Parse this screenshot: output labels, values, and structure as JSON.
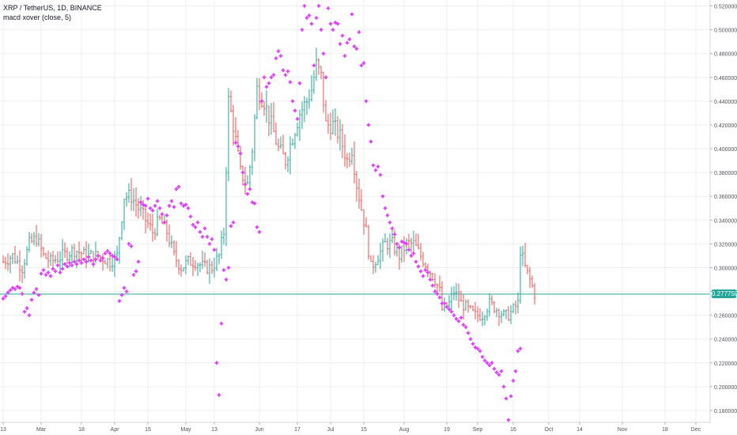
{
  "header": {
    "symbol_line": "XRP / TetherUS, 1D, BINANCE",
    "indicator_line": "macd xover (close, 5)"
  },
  "colors": {
    "up": "#26a69a",
    "down": "#ef5350",
    "marker": "#e040fb",
    "price_line": "#26a69a",
    "axis_text": "#50535e",
    "grid": "#eceff1"
  },
  "chart_data": {
    "type": "ohlc",
    "title": "XRP / TetherUS, 1D, BINANCE",
    "ylim": [
      0.17,
      0.525
    ],
    "y_ticks": [
      "0.18000000",
      "0.20000000",
      "0.22000000",
      "0.24000000",
      "0.26000000",
      "0.28000000",
      "0.30000000",
      "0.32000000",
      "0.34000000",
      "0.36000000",
      "0.38000000",
      "0.40000000",
      "0.42000000",
      "0.44000000",
      "0.46000000",
      "0.48000000",
      "0.50000000",
      "0.52000000"
    ],
    "x_ticks": [
      {
        "label": "13",
        "day": 0
      },
      {
        "label": "Mar",
        "day": 16
      },
      {
        "label": "18",
        "day": 33
      },
      {
        "label": "Apr",
        "day": 47
      },
      {
        "label": "15",
        "day": 61
      },
      {
        "label": "May",
        "day": 77
      },
      {
        "label": "13",
        "day": 89
      },
      {
        "label": "Jun",
        "day": 108
      },
      {
        "label": "17",
        "day": 124
      },
      {
        "label": "Jul",
        "day": 138
      },
      {
        "label": "15",
        "day": 152
      },
      {
        "label": "Aug",
        "day": 169
      },
      {
        "label": "19",
        "day": 187
      },
      {
        "label": "Sep",
        "day": 200
      },
      {
        "label": "16",
        "day": 215
      },
      {
        "label": "Oct",
        "day": 230
      },
      {
        "label": "14",
        "day": 243
      },
      {
        "label": "Nov",
        "day": 261
      },
      {
        "label": "18",
        "day": 279
      },
      {
        "label": "Dec",
        "day": 292
      }
    ],
    "last_price": 0.27775,
    "last_price_label": "0.27775000",
    "legend": "macd xover (close, 5)",
    "ohlc_waypoints": [
      [
        0,
        0.305
      ],
      [
        4,
        0.31
      ],
      [
        8,
        0.3
      ],
      [
        11,
        0.32
      ],
      [
        14,
        0.325
      ],
      [
        17,
        0.31
      ],
      [
        20,
        0.305
      ],
      [
        25,
        0.31
      ],
      [
        30,
        0.315
      ],
      [
        35,
        0.31
      ],
      [
        40,
        0.31
      ],
      [
        45,
        0.305
      ],
      [
        48,
        0.31
      ],
      [
        51,
        0.36
      ],
      [
        54,
        0.36
      ],
      [
        57,
        0.35
      ],
      [
        60,
        0.34
      ],
      [
        63,
        0.33
      ],
      [
        66,
        0.34
      ],
      [
        69,
        0.33
      ],
      [
        72,
        0.31
      ],
      [
        75,
        0.3
      ],
      [
        78,
        0.305
      ],
      [
        81,
        0.305
      ],
      [
        85,
        0.3
      ],
      [
        88,
        0.3
      ],
      [
        91,
        0.31
      ],
      [
        93,
        0.33
      ],
      [
        95,
        0.44
      ],
      [
        97,
        0.42
      ],
      [
        100,
        0.38
      ],
      [
        103,
        0.37
      ],
      [
        105,
        0.4
      ],
      [
        107,
        0.45
      ],
      [
        110,
        0.44
      ],
      [
        113,
        0.42
      ],
      [
        116,
        0.4
      ],
      [
        119,
        0.39
      ],
      [
        122,
        0.41
      ],
      [
        125,
        0.43
      ],
      [
        128,
        0.44
      ],
      [
        130,
        0.45
      ],
      [
        132,
        0.47
      ],
      [
        134,
        0.46
      ],
      [
        136,
        0.42
      ],
      [
        139,
        0.42
      ],
      [
        142,
        0.41
      ],
      [
        145,
        0.39
      ],
      [
        147,
        0.4
      ],
      [
        149,
        0.37
      ],
      [
        151,
        0.35
      ],
      [
        153,
        0.33
      ],
      [
        155,
        0.3
      ],
      [
        158,
        0.31
      ],
      [
        161,
        0.32
      ],
      [
        164,
        0.32
      ],
      [
        167,
        0.31
      ],
      [
        170,
        0.32
      ],
      [
        173,
        0.32
      ],
      [
        176,
        0.31
      ],
      [
        179,
        0.3
      ],
      [
        182,
        0.29
      ],
      [
        184,
        0.28
      ],
      [
        185,
        0.265
      ],
      [
        188,
        0.27
      ],
      [
        190,
        0.28
      ],
      [
        193,
        0.27
      ],
      [
        196,
        0.265
      ],
      [
        199,
        0.26
      ],
      [
        202,
        0.26
      ],
      [
        205,
        0.27
      ],
      [
        208,
        0.265
      ],
      [
        211,
        0.26
      ],
      [
        213,
        0.26
      ],
      [
        215,
        0.265
      ],
      [
        217,
        0.27
      ],
      [
        218,
        0.315
      ],
      [
        220,
        0.3
      ],
      [
        222,
        0.29
      ],
      [
        224,
        0.278
      ]
    ],
    "marker_points": [
      [
        0,
        0.274
      ],
      [
        1,
        0.276
      ],
      [
        2,
        0.279
      ],
      [
        3,
        0.281
      ],
      [
        4,
        0.283
      ],
      [
        5,
        0.282
      ],
      [
        6,
        0.284
      ],
      [
        7,
        0.283
      ],
      [
        8,
        0.278
      ],
      [
        9,
        0.263
      ],
      [
        10,
        0.266
      ],
      [
        11,
        0.26
      ],
      [
        12,
        0.273
      ],
      [
        13,
        0.279
      ],
      [
        14,
        0.282
      ],
      [
        15,
        0.277
      ],
      [
        16,
        0.295
      ],
      [
        17,
        0.298
      ],
      [
        18,
        0.294
      ],
      [
        19,
        0.296
      ],
      [
        20,
        0.293
      ],
      [
        21,
        0.299
      ],
      [
        22,
        0.297
      ],
      [
        23,
        0.302
      ],
      [
        24,
        0.296
      ],
      [
        25,
        0.299
      ],
      [
        26,
        0.303
      ],
      [
        27,
        0.301
      ],
      [
        28,
        0.304
      ],
      [
        29,
        0.302
      ],
      [
        30,
        0.305
      ],
      [
        31,
        0.303
      ],
      [
        32,
        0.306
      ],
      [
        33,
        0.304
      ],
      [
        34,
        0.307
      ],
      [
        35,
        0.305
      ],
      [
        36,
        0.309
      ],
      [
        37,
        0.306
      ],
      [
        38,
        0.303
      ],
      [
        39,
        0.307
      ],
      [
        40,
        0.31
      ],
      [
        41,
        0.306
      ],
      [
        42,
        0.308
      ],
      [
        43,
        0.312
      ],
      [
        44,
        0.314
      ],
      [
        45,
        0.312
      ],
      [
        46,
        0.31
      ],
      [
        47,
        0.309
      ],
      [
        48,
        0.307
      ],
      [
        49,
        0.272
      ],
      [
        50,
        0.277
      ],
      [
        51,
        0.283
      ],
      [
        52,
        0.28
      ],
      [
        53,
        0.32
      ],
      [
        54,
        0.318
      ],
      [
        55,
        0.294
      ],
      [
        56,
        0.297
      ],
      [
        57,
        0.305
      ],
      [
        58,
        0.355
      ],
      [
        59,
        0.353
      ],
      [
        60,
        0.352
      ],
      [
        61,
        0.358
      ],
      [
        62,
        0.35
      ],
      [
        63,
        0.348
      ],
      [
        64,
        0.352
      ],
      [
        65,
        0.356
      ],
      [
        66,
        0.35
      ],
      [
        67,
        0.345
      ],
      [
        68,
        0.338
      ],
      [
        69,
        0.344
      ],
      [
        70,
        0.352
      ],
      [
        71,
        0.356
      ],
      [
        72,
        0.351
      ],
      [
        73,
        0.366
      ],
      [
        74,
        0.368
      ],
      [
        75,
        0.354
      ],
      [
        76,
        0.352
      ],
      [
        77,
        0.353
      ],
      [
        78,
        0.35
      ],
      [
        79,
        0.343
      ],
      [
        80,
        0.336
      ],
      [
        81,
        0.334
      ],
      [
        82,
        0.338
      ],
      [
        83,
        0.33
      ],
      [
        84,
        0.326
      ],
      [
        85,
        0.333
      ],
      [
        86,
        0.326
      ],
      [
        87,
        0.32
      ],
      [
        88,
        0.324
      ],
      [
        89,
        0.315
      ],
      [
        90,
        0.22
      ],
      [
        91,
        0.193
      ],
      [
        92,
        0.253
      ],
      [
        93,
        0.298
      ],
      [
        94,
        0.29
      ],
      [
        95,
        0.3
      ],
      [
        96,
        0.335
      ],
      [
        97,
        0.338
      ],
      [
        98,
        0.405
      ],
      [
        99,
        0.402
      ],
      [
        100,
        0.396
      ],
      [
        101,
        0.38
      ],
      [
        102,
        0.37
      ],
      [
        103,
        0.362
      ],
      [
        104,
        0.366
      ],
      [
        105,
        0.355
      ],
      [
        106,
        0.354
      ],
      [
        107,
        0.334
      ],
      [
        108,
        0.33
      ],
      [
        109,
        0.44
      ],
      [
        110,
        0.46
      ],
      [
        111,
        0.452
      ],
      [
        112,
        0.455
      ],
      [
        113,
        0.46
      ],
      [
        114,
        0.462
      ],
      [
        115,
        0.476
      ],
      [
        116,
        0.482
      ],
      [
        117,
        0.478
      ],
      [
        118,
        0.466
      ],
      [
        119,
        0.462
      ],
      [
        120,
        0.465
      ],
      [
        121,
        0.456
      ],
      [
        122,
        0.44
      ],
      [
        123,
        0.432
      ],
      [
        124,
        0.425
      ],
      [
        125,
        0.455
      ],
      [
        126,
        0.5
      ],
      [
        127,
        0.52
      ],
      [
        128,
        0.51
      ],
      [
        129,
        0.512
      ],
      [
        130,
        0.505
      ],
      [
        131,
        0.47
      ],
      [
        132,
        0.51
      ],
      [
        133,
        0.52
      ],
      [
        134,
        0.5
      ],
      [
        135,
        0.48
      ],
      [
        136,
        0.46
      ],
      [
        137,
        0.518
      ],
      [
        138,
        0.505
      ],
      [
        139,
        0.5
      ],
      [
        140,
        0.506
      ],
      [
        141,
        0.505
      ],
      [
        142,
        0.488
      ],
      [
        143,
        0.495
      ],
      [
        144,
        0.478
      ],
      [
        145,
        0.489
      ],
      [
        146,
        0.492
      ],
      [
        147,
        0.513
      ],
      [
        148,
        0.486
      ],
      [
        149,
        0.484
      ],
      [
        150,
        0.498
      ],
      [
        151,
        0.47
      ],
      [
        152,
        0.472
      ],
      [
        153,
        0.44
      ],
      [
        154,
        0.42
      ],
      [
        155,
        0.406
      ],
      [
        156,
        0.386
      ],
      [
        157,
        0.382
      ],
      [
        158,
        0.385
      ],
      [
        159,
        0.378
      ],
      [
        160,
        0.36
      ],
      [
        161,
        0.35
      ],
      [
        162,
        0.344
      ],
      [
        163,
        0.338
      ],
      [
        164,
        0.333
      ],
      [
        165,
        0.328
      ],
      [
        166,
        0.32
      ],
      [
        167,
        0.317
      ],
      [
        168,
        0.322
      ],
      [
        169,
        0.321
      ],
      [
        170,
        0.32
      ],
      [
        171,
        0.315
      ],
      [
        172,
        0.31
      ],
      [
        173,
        0.312
      ],
      [
        174,
        0.305
      ],
      [
        175,
        0.301
      ],
      [
        176,
        0.297
      ],
      [
        177,
        0.293
      ],
      [
        178,
        0.298
      ],
      [
        179,
        0.296
      ],
      [
        180,
        0.29
      ],
      [
        181,
        0.285
      ],
      [
        182,
        0.28
      ],
      [
        183,
        0.278
      ],
      [
        184,
        0.275
      ],
      [
        185,
        0.27
      ],
      [
        186,
        0.27
      ],
      [
        187,
        0.267
      ],
      [
        188,
        0.265
      ],
      [
        189,
        0.263
      ],
      [
        190,
        0.26
      ],
      [
        191,
        0.257
      ],
      [
        192,
        0.255
      ],
      [
        193,
        0.258
      ],
      [
        194,
        0.252
      ],
      [
        195,
        0.25
      ],
      [
        196,
        0.245
      ],
      [
        197,
        0.24
      ],
      [
        198,
        0.236
      ],
      [
        199,
        0.233
      ],
      [
        200,
        0.232
      ],
      [
        201,
        0.23
      ],
      [
        202,
        0.225
      ],
      [
        203,
        0.222
      ],
      [
        204,
        0.22
      ],
      [
        205,
        0.218
      ],
      [
        206,
        0.22
      ],
      [
        207,
        0.215
      ],
      [
        208,
        0.212
      ],
      [
        209,
        0.21
      ],
      [
        210,
        0.213
      ],
      [
        211,
        0.2
      ],
      [
        212,
        0.19
      ],
      [
        213,
        0.172
      ],
      [
        214,
        0.192
      ],
      [
        215,
        0.205
      ],
      [
        216,
        0.213
      ],
      [
        217,
        0.23
      ],
      [
        218,
        0.232
      ]
    ]
  }
}
